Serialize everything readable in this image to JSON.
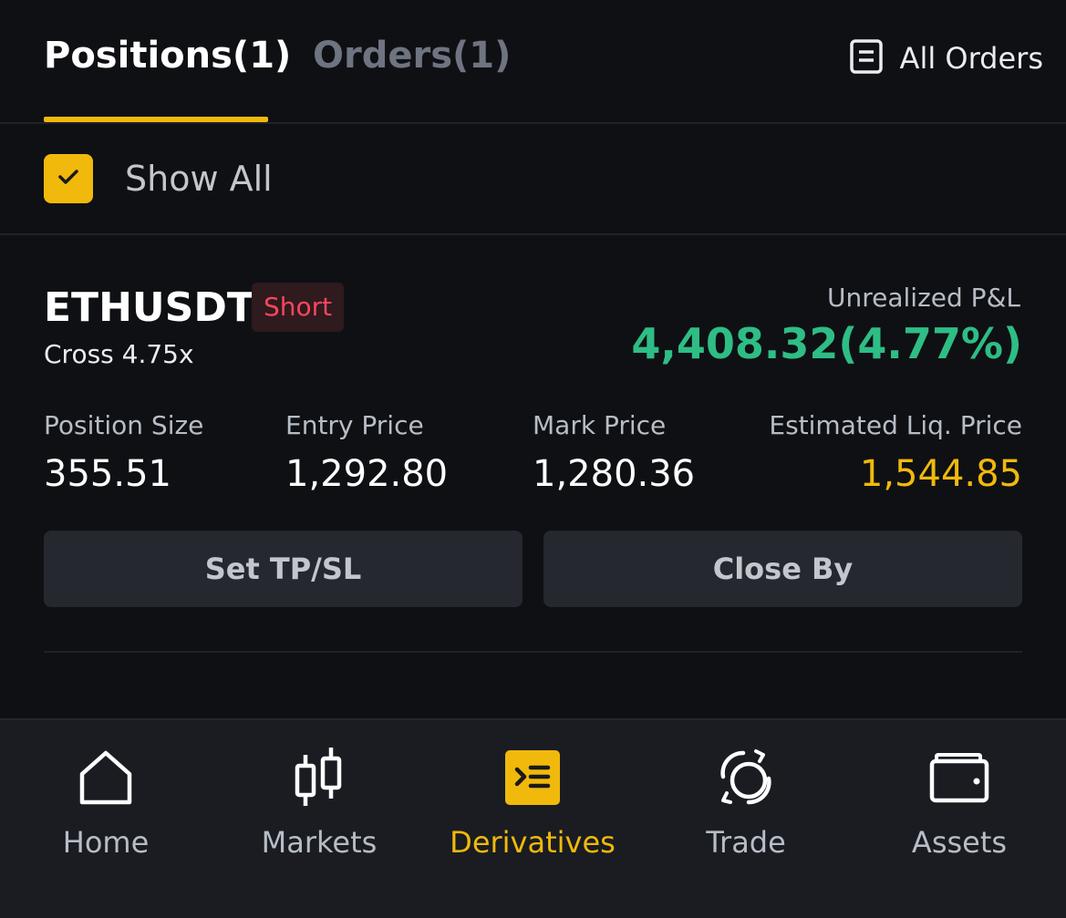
{
  "tabs": {
    "positions_label": "Positions(1)",
    "orders_label": "Orders(1)",
    "all_orders_label": "All Orders"
  },
  "filter": {
    "show_all_label": "Show All",
    "show_all_checked": true
  },
  "position": {
    "symbol": "ETHUSDT",
    "side": "Short",
    "margin_mode": "Cross 4.75x",
    "pnl_label": "Unrealized P&L",
    "pnl_value": "4,408.32(4.77%)",
    "stats": [
      {
        "label": "Position Size",
        "value": "355.51"
      },
      {
        "label": "Entry Price",
        "value": "1,292.80"
      },
      {
        "label": "Mark Price",
        "value": "1,280.36"
      },
      {
        "label": "Estimated Liq. Price",
        "value": "1,544.85"
      }
    ],
    "set_tpsl_label": "Set TP/SL",
    "close_by_label": "Close By"
  },
  "nav": {
    "items": [
      {
        "label": "Home",
        "icon": "home-icon"
      },
      {
        "label": "Markets",
        "icon": "candlestick-icon"
      },
      {
        "label": "Derivatives",
        "icon": "derivatives-icon",
        "active": true
      },
      {
        "label": "Trade",
        "icon": "trade-icon"
      },
      {
        "label": "Assets",
        "icon": "wallet-icon"
      }
    ]
  },
  "colors": {
    "accent": "#f0b90b",
    "profit": "#2ebd85",
    "short": "#f6465d",
    "background": "#0f1014"
  }
}
